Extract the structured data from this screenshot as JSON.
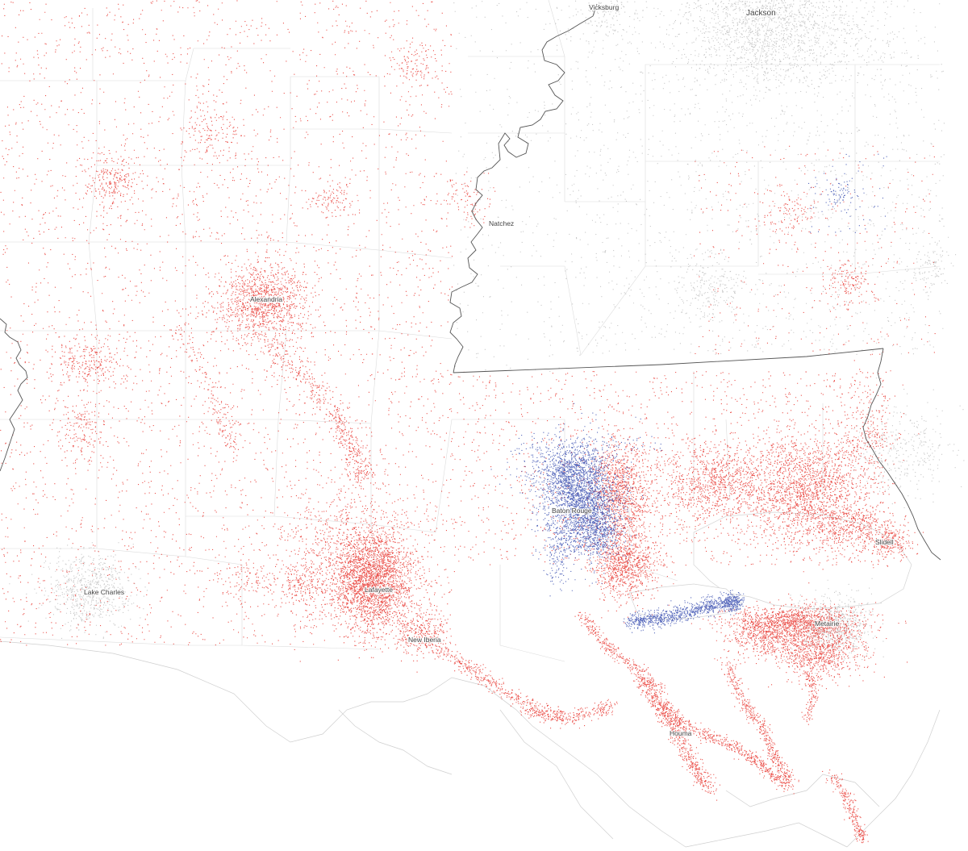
{
  "map": {
    "cities": [
      {
        "id": "vicksburg",
        "name": "Vicksburg"
      },
      {
        "id": "jackson",
        "name": "Jackson"
      },
      {
        "id": "natchez",
        "name": "Natchez"
      },
      {
        "id": "alexandria",
        "name": "Alexandria"
      },
      {
        "id": "baton-rouge",
        "name": "Baton Rouge"
      },
      {
        "id": "slidell",
        "name": "Slidell"
      },
      {
        "id": "lake-charles",
        "name": "Lake Charles"
      },
      {
        "id": "lafayette",
        "name": "Lafayette"
      },
      {
        "id": "new-iberia",
        "name": "New Iberia"
      },
      {
        "id": "metairie",
        "name": "Metairie"
      },
      {
        "id": "houma",
        "name": "Houma"
      }
    ],
    "colors": {
      "background": "#ffffff",
      "red_dots": "#e8322c",
      "blue_dots": "#3a4fb0",
      "gray_dots": "#9a9a9a",
      "state_border": "#555555",
      "county_lines": "#dcdcdc"
    }
  }
}
